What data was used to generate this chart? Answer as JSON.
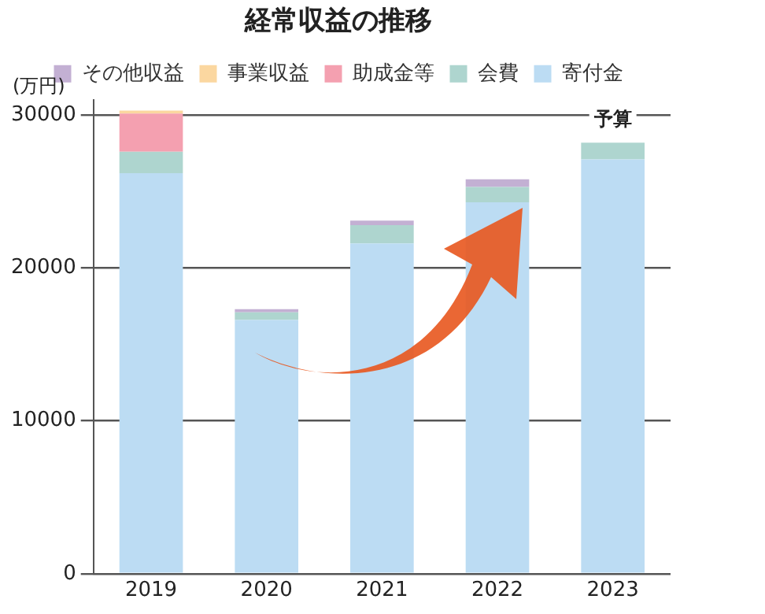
{
  "chart_data": {
    "type": "bar",
    "title": "経常収益の推移",
    "ylabel": "(万円)",
    "categories": [
      "2019",
      "2020",
      "2021",
      "2022",
      "2023"
    ],
    "stacked": true,
    "series": [
      {
        "name": "寄付金",
        "color": "#bcdcf3",
        "values": [
          26200,
          16600,
          21600,
          24300,
          27100
        ]
      },
      {
        "name": "会費",
        "color": "#aed5cf",
        "values": [
          1400,
          500,
          1200,
          1000,
          1100
        ]
      },
      {
        "name": "助成金等",
        "color": "#f4a0b0",
        "values": [
          2500,
          null,
          null,
          null,
          null
        ]
      },
      {
        "name": "事業収益",
        "color": "#fbd7a0",
        "values": [
          200,
          null,
          null,
          null,
          null
        ]
      },
      {
        "name": "その他収益",
        "color": "#c3b0d3",
        "values": [
          null,
          200,
          300,
          500,
          null
        ]
      }
    ],
    "ylim": [
      0,
      31000
    ],
    "yticks": [
      0,
      10000,
      20000,
      30000
    ],
    "grid": "y",
    "legend": "top",
    "annotations": [
      {
        "text": "予算",
        "x": "2023",
        "y": 28200
      }
    ]
  }
}
